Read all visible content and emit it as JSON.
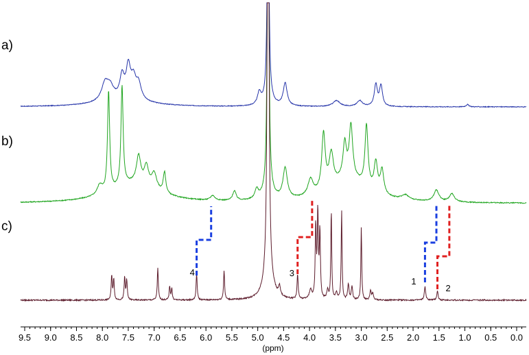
{
  "chart_data": {
    "type": "line",
    "title": "",
    "xlabel": "(ppm)",
    "ylabel": "",
    "xlim": [
      9.7,
      -0.3
    ],
    "x_reversed": true,
    "grid": false,
    "x_ticks": [
      "9.5",
      "9.0",
      "8.5",
      "8.0",
      "7.5",
      "7.0",
      "6.5",
      "6.0",
      "5.5",
      "5.0",
      "4.5",
      "4.0",
      "3.5",
      "3.0",
      "2.5",
      "2.0",
      "1.5",
      "1.0",
      "0.5",
      "0.0"
    ],
    "x_tick_values": [
      9.5,
      9.0,
      8.5,
      8.0,
      7.5,
      7.0,
      6.5,
      6.0,
      5.5,
      5.0,
      4.5,
      4.0,
      3.5,
      3.0,
      2.5,
      2.0,
      1.5,
      1.0,
      0.5,
      0.0
    ],
    "series": [
      {
        "panel": "a)",
        "color": "#2433a8",
        "note_y_units": "relative intensity",
        "peaks": [
          {
            "x": 7.95,
            "h": 0.14,
            "w": 0.08
          },
          {
            "x": 7.85,
            "h": 0.1,
            "w": 0.08
          },
          {
            "x": 7.62,
            "h": 0.18,
            "w": 0.05
          },
          {
            "x": 7.5,
            "h": 0.25,
            "w": 0.05
          },
          {
            "x": 7.4,
            "h": 0.16,
            "w": 0.06
          },
          {
            "x": 7.3,
            "h": 0.13,
            "w": 0.06
          },
          {
            "x": 4.97,
            "h": 0.1,
            "w": 0.04
          },
          {
            "x": 4.8,
            "h": 4.0,
            "w": 0.012
          },
          {
            "x": 4.47,
            "h": 0.19,
            "w": 0.045
          },
          {
            "x": 3.48,
            "h": 0.05,
            "w": 0.08
          },
          {
            "x": 3.03,
            "h": 0.05,
            "w": 0.06
          },
          {
            "x": 2.72,
            "h": 0.18,
            "w": 0.035
          },
          {
            "x": 2.62,
            "h": 0.17,
            "w": 0.035
          },
          {
            "x": 0.95,
            "h": 0.02,
            "w": 0.03
          }
        ],
        "broad": [
          {
            "x": 7.6,
            "h": 0.06,
            "w": 0.55
          },
          {
            "x": 4.8,
            "h": 0.12,
            "w": 0.08
          }
        ]
      },
      {
        "panel": "b)",
        "color": "#1fa51f",
        "note_y_units": "relative intensity",
        "peaks": [
          {
            "x": 8.05,
            "h": 0.06,
            "w": 0.06
          },
          {
            "x": 7.88,
            "h": 0.62,
            "w": 0.025
          },
          {
            "x": 7.62,
            "h": 0.62,
            "w": 0.025
          },
          {
            "x": 7.3,
            "h": 0.17,
            "w": 0.05
          },
          {
            "x": 7.15,
            "h": 0.12,
            "w": 0.05
          },
          {
            "x": 7.0,
            "h": 0.1,
            "w": 0.06
          },
          {
            "x": 6.8,
            "h": 0.13,
            "w": 0.03
          },
          {
            "x": 5.87,
            "h": 0.03,
            "w": 0.05
          },
          {
            "x": 5.45,
            "h": 0.06,
            "w": 0.04
          },
          {
            "x": 5.02,
            "h": 0.06,
            "w": 0.04
          },
          {
            "x": 4.8,
            "h": 4.0,
            "w": 0.012
          },
          {
            "x": 4.47,
            "h": 0.19,
            "w": 0.05
          },
          {
            "x": 3.98,
            "h": 0.1,
            "w": 0.06
          },
          {
            "x": 3.73,
            "h": 0.35,
            "w": 0.04
          },
          {
            "x": 3.58,
            "h": 0.2,
            "w": 0.05
          },
          {
            "x": 3.32,
            "h": 0.21,
            "w": 0.04
          },
          {
            "x": 3.2,
            "h": 0.32,
            "w": 0.04
          },
          {
            "x": 2.9,
            "h": 0.38,
            "w": 0.035
          },
          {
            "x": 2.72,
            "h": 0.18,
            "w": 0.04
          },
          {
            "x": 2.6,
            "h": 0.15,
            "w": 0.04
          },
          {
            "x": 2.15,
            "h": 0.03,
            "w": 0.08
          },
          {
            "x": 1.55,
            "h": 0.07,
            "w": 0.06
          },
          {
            "x": 1.25,
            "h": 0.05,
            "w": 0.06
          }
        ],
        "broad": [
          {
            "x": 7.4,
            "h": 0.12,
            "w": 0.55
          },
          {
            "x": 3.25,
            "h": 0.15,
            "w": 0.45
          },
          {
            "x": 4.8,
            "h": 0.12,
            "w": 0.08
          }
        ]
      },
      {
        "panel": "c)",
        "color": "#5b1a2a",
        "note_y_units": "relative intensity",
        "peaks": [
          {
            "x": 7.82,
            "h": 0.11,
            "w": 0.012
          },
          {
            "x": 7.78,
            "h": 0.09,
            "w": 0.012
          },
          {
            "x": 7.57,
            "h": 0.1,
            "w": 0.012
          },
          {
            "x": 7.53,
            "h": 0.09,
            "w": 0.012
          },
          {
            "x": 6.93,
            "h": 0.14,
            "w": 0.012
          },
          {
            "x": 6.7,
            "h": 0.06,
            "w": 0.012
          },
          {
            "x": 6.66,
            "h": 0.05,
            "w": 0.012
          },
          {
            "x": 6.18,
            "h": 0.12,
            "w": 0.012
          },
          {
            "x": 5.65,
            "h": 0.13,
            "w": 0.012
          },
          {
            "x": 4.8,
            "h": 4.0,
            "w": 0.012
          },
          {
            "x": 4.58,
            "h": 0.04,
            "w": 0.02
          },
          {
            "x": 4.23,
            "h": 0.11,
            "w": 0.013
          },
          {
            "x": 3.98,
            "h": 0.04,
            "w": 0.03
          },
          {
            "x": 3.88,
            "h": 0.32,
            "w": 0.012
          },
          {
            "x": 3.84,
            "h": 0.38,
            "w": 0.012
          },
          {
            "x": 3.8,
            "h": 0.3,
            "w": 0.012
          },
          {
            "x": 3.65,
            "h": 0.04,
            "w": 0.02
          },
          {
            "x": 3.58,
            "h": 0.4,
            "w": 0.01
          },
          {
            "x": 3.48,
            "h": 0.03,
            "w": 0.02
          },
          {
            "x": 3.38,
            "h": 0.4,
            "w": 0.01
          },
          {
            "x": 3.25,
            "h": 0.07,
            "w": 0.015
          },
          {
            "x": 3.18,
            "h": 0.06,
            "w": 0.015
          },
          {
            "x": 3.0,
            "h": 0.32,
            "w": 0.01
          },
          {
            "x": 2.82,
            "h": 0.04,
            "w": 0.015
          },
          {
            "x": 2.78,
            "h": 0.03,
            "w": 0.015
          },
          {
            "x": 1.77,
            "h": 0.06,
            "w": 0.015
          },
          {
            "x": 1.53,
            "h": 0.04,
            "w": 0.015
          }
        ],
        "broad": [
          {
            "x": 4.8,
            "h": 0.14,
            "w": 0.09
          }
        ]
      }
    ],
    "panel_labels": [
      "a)",
      "b)",
      "c)"
    ],
    "annotations": [
      {
        "label": "1",
        "color": "#1a3fe0",
        "dash_x_low": 1.77,
        "dash_x_high": 1.55
      },
      {
        "label": "2",
        "color": "#e02020",
        "dash_x_low": 1.53,
        "dash_x_high": 1.3
      },
      {
        "label": "3",
        "color": "#e02020",
        "dash_x_low": 4.23,
        "dash_x_high": 3.95
      },
      {
        "label": "4",
        "color": "#1a3fe0",
        "dash_x_low": 6.18,
        "dash_x_high": 5.9
      }
    ]
  }
}
